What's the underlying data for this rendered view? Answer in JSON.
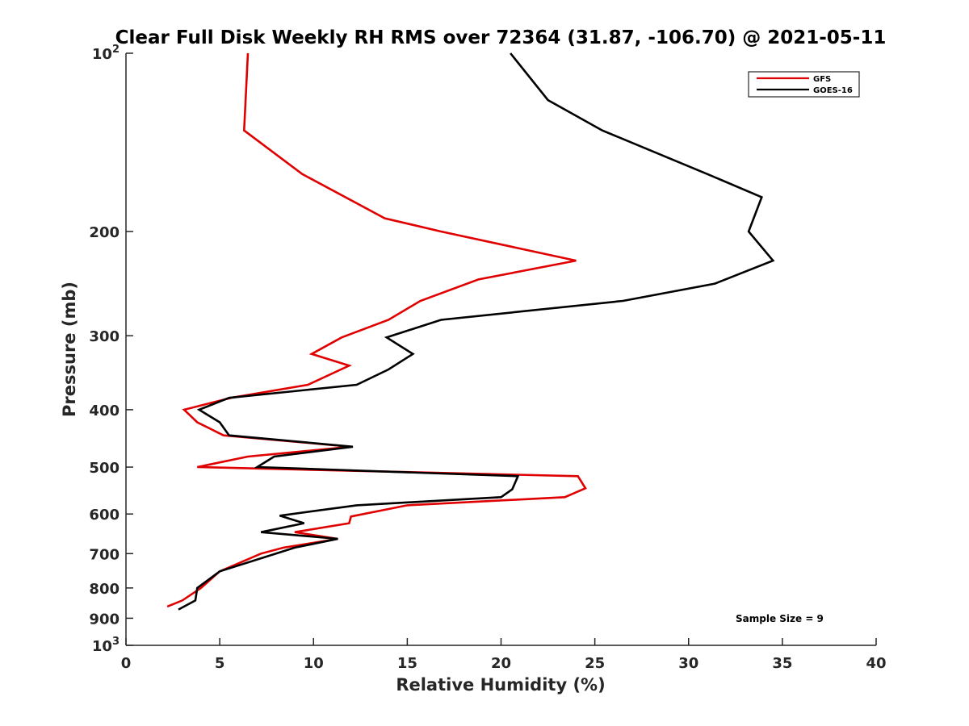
{
  "chart_data": {
    "type": "line",
    "title": "Clear Full Disk Weekly RH RMS over 72364 (31.87, -106.70) @ 2021-05-11",
    "xlabel": "Relative Humidity (%)",
    "ylabel": "Pressure (mb)",
    "xlim": [
      0,
      40
    ],
    "ylim": [
      100,
      1000
    ],
    "y_scale": "log",
    "y_reversed": true,
    "grid": false,
    "legend_position": "top-right",
    "x_ticks": [
      {
        "value": 0,
        "label": "0"
      },
      {
        "value": 5,
        "label": "5"
      },
      {
        "value": 10,
        "label": "10"
      },
      {
        "value": 15,
        "label": "15"
      },
      {
        "value": 20,
        "label": "20"
      },
      {
        "value": 25,
        "label": "25"
      },
      {
        "value": 30,
        "label": "30"
      },
      {
        "value": 35,
        "label": "35"
      },
      {
        "value": 40,
        "label": "40"
      }
    ],
    "y_ticks": [
      {
        "value": 100,
        "label": "10",
        "sup": "2"
      },
      {
        "value": 200,
        "label": "200",
        "sup": ""
      },
      {
        "value": 300,
        "label": "300",
        "sup": ""
      },
      {
        "value": 400,
        "label": "400",
        "sup": ""
      },
      {
        "value": 500,
        "label": "500",
        "sup": ""
      },
      {
        "value": 600,
        "label": "600",
        "sup": ""
      },
      {
        "value": 700,
        "label": "700",
        "sup": ""
      },
      {
        "value": 800,
        "label": "800",
        "sup": ""
      },
      {
        "value": 900,
        "label": "900",
        "sup": ""
      },
      {
        "value": 1000,
        "label": "10",
        "sup": "3"
      }
    ],
    "series": [
      {
        "name": "GFS",
        "color": "#e00000",
        "points": [
          [
            6.5,
            100
          ],
          [
            6.3,
            135
          ],
          [
            9.4,
            160
          ],
          [
            13.8,
            190
          ],
          [
            16.8,
            200
          ],
          [
            24.0,
            224
          ],
          [
            18.8,
            241
          ],
          [
            15.7,
            262
          ],
          [
            14.0,
            282
          ],
          [
            11.5,
            302
          ],
          [
            9.9,
            322
          ],
          [
            11.9,
            337
          ],
          [
            9.7,
            363
          ],
          [
            5.6,
            382
          ],
          [
            3.1,
            400
          ],
          [
            3.8,
            420
          ],
          [
            5.2,
            442
          ],
          [
            12.0,
            462
          ],
          [
            6.5,
            480
          ],
          [
            3.8,
            500
          ],
          [
            24.1,
            518
          ],
          [
            24.5,
            543
          ],
          [
            23.4,
            562
          ],
          [
            15.0,
            580
          ],
          [
            12.0,
            606
          ],
          [
            11.9,
            622
          ],
          [
            9.0,
            644
          ],
          [
            11.3,
            661
          ],
          [
            8.4,
            684
          ],
          [
            7.2,
            700
          ],
          [
            5.0,
            750
          ],
          [
            4.0,
            800
          ],
          [
            3.0,
            840
          ],
          [
            2.2,
            860
          ]
        ]
      },
      {
        "name": "GOES-16",
        "color": "#000000",
        "points": [
          [
            20.5,
            100
          ],
          [
            22.5,
            120
          ],
          [
            25.4,
            135
          ],
          [
            31.0,
            160
          ],
          [
            33.9,
            175
          ],
          [
            33.2,
            200
          ],
          [
            34.5,
            224
          ],
          [
            31.4,
            245
          ],
          [
            26.5,
            262
          ],
          [
            16.8,
            282
          ],
          [
            13.9,
            302
          ],
          [
            15.3,
            322
          ],
          [
            14.0,
            342
          ],
          [
            12.3,
            363
          ],
          [
            5.5,
            382
          ],
          [
            3.9,
            400
          ],
          [
            5.0,
            420
          ],
          [
            5.5,
            442
          ],
          [
            12.1,
            462
          ],
          [
            7.9,
            480
          ],
          [
            7.0,
            500
          ],
          [
            20.9,
            518
          ],
          [
            20.6,
            545
          ],
          [
            20.0,
            562
          ],
          [
            12.3,
            580
          ],
          [
            8.2,
            604
          ],
          [
            9.5,
            622
          ],
          [
            7.2,
            644
          ],
          [
            11.3,
            661
          ],
          [
            9.0,
            684
          ],
          [
            8.0,
            700
          ],
          [
            5.0,
            750
          ],
          [
            3.8,
            800
          ],
          [
            3.7,
            840
          ],
          [
            2.8,
            870
          ]
        ]
      }
    ],
    "annotations": [
      {
        "text": "Sample Size = 9"
      }
    ]
  }
}
